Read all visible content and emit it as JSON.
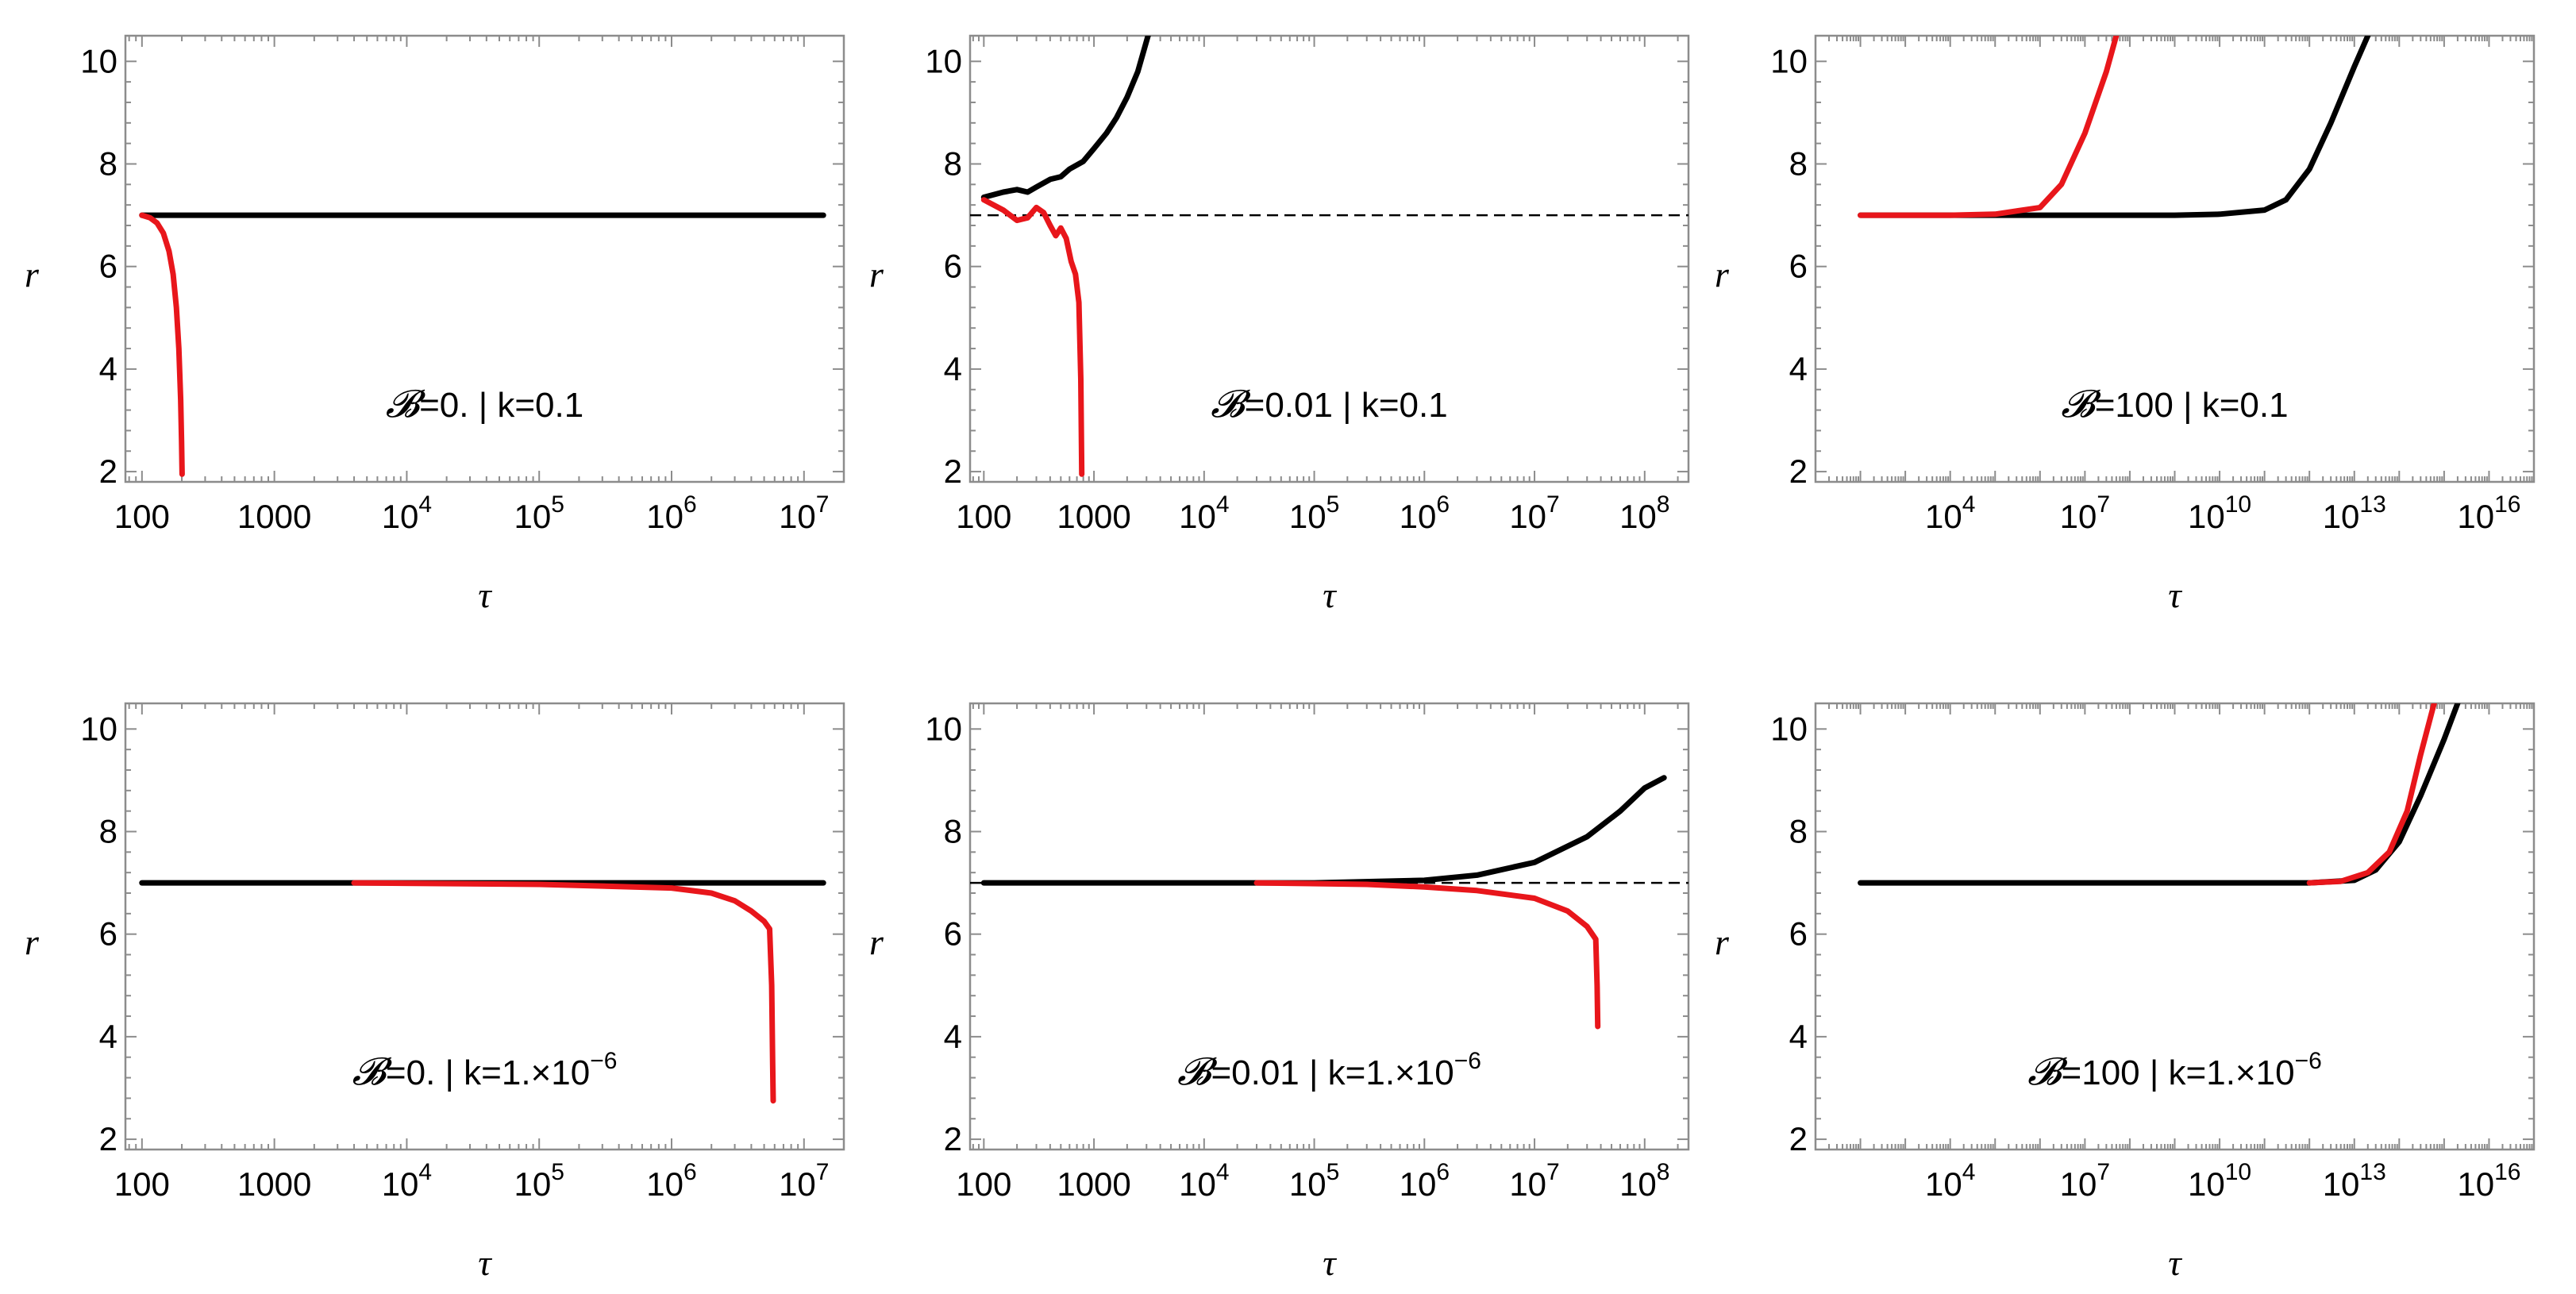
{
  "chart_data": [
    {
      "type": "line",
      "label": "𝓑=0. | k=0.1",
      "label_b": "𝓑",
      "label_b_value": "=0. | k=0.1",
      "label_exp": "",
      "xlabel": "τ",
      "ylabel": "r",
      "xscale": "log",
      "xlim": [
        75,
        20000000
      ],
      "ylim": [
        1.8,
        10.5
      ],
      "xticks": [
        {
          "v": 100,
          "m": "100",
          "e": ""
        },
        {
          "v": 1000,
          "m": "1000",
          "e": ""
        },
        {
          "v": 10000,
          "m": "10",
          "e": "4"
        },
        {
          "v": 100000,
          "m": "10",
          "e": "5"
        },
        {
          "v": 1000000,
          "m": "10",
          "e": "6"
        },
        {
          "v": 10000000,
          "m": "10",
          "e": "7"
        }
      ],
      "yticks": [
        "2",
        "4",
        "6",
        "8",
        "10"
      ],
      "dashed_reference": false,
      "series": [
        {
          "name": "black",
          "color": "#000000",
          "points": [
            [
              100,
              7.0
            ],
            [
              1000,
              7.0
            ],
            [
              10000,
              7.0
            ],
            [
              100000,
              7.0
            ],
            [
              1000000,
              7.0
            ],
            [
              10000000,
              7.0
            ],
            [
              14000000,
              7.0
            ]
          ]
        },
        {
          "name": "red",
          "color": "#e8161b",
          "points": [
            [
              100,
              7.0
            ],
            [
              115,
              6.95
            ],
            [
              130,
              6.85
            ],
            [
              145,
              6.65
            ],
            [
              160,
              6.3
            ],
            [
              172,
              5.85
            ],
            [
              182,
              5.2
            ],
            [
              190,
              4.4
            ],
            [
              196,
              3.4
            ],
            [
              199,
              2.6
            ],
            [
              201,
              1.95
            ]
          ]
        }
      ]
    },
    {
      "type": "line",
      "label": "𝓑=0.01 | k=0.1",
      "label_b": "𝓑",
      "label_b_value": "=0.01 | k=0.1",
      "label_exp": "",
      "xlabel": "τ",
      "ylabel": "r",
      "xscale": "log",
      "xlim": [
        75,
        250000000
      ],
      "ylim": [
        1.8,
        10.5
      ],
      "xticks": [
        {
          "v": 100,
          "m": "100",
          "e": ""
        },
        {
          "v": 1000,
          "m": "1000",
          "e": ""
        },
        {
          "v": 10000,
          "m": "10",
          "e": "4"
        },
        {
          "v": 100000,
          "m": "10",
          "e": "5"
        },
        {
          "v": 1000000,
          "m": "10",
          "e": "6"
        },
        {
          "v": 10000000,
          "m": "10",
          "e": "7"
        },
        {
          "v": 100000000,
          "m": "10",
          "e": "8"
        }
      ],
      "yticks": [
        "2",
        "4",
        "6",
        "8",
        "10"
      ],
      "dashed_reference": true,
      "reference_y": 7,
      "series": [
        {
          "name": "black",
          "color": "#000000",
          "points": [
            [
              100,
              7.35
            ],
            [
              150,
              7.45
            ],
            [
              200,
              7.5
            ],
            [
              250,
              7.45
            ],
            [
              300,
              7.55
            ],
            [
              400,
              7.7
            ],
            [
              500,
              7.75
            ],
            [
              600,
              7.9
            ],
            [
              800,
              8.05
            ],
            [
              1000,
              8.3
            ],
            [
              1300,
              8.6
            ],
            [
              1600,
              8.9
            ],
            [
              2000,
              9.3
            ],
            [
              2500,
              9.8
            ],
            [
              3100,
              10.5
            ]
          ]
        },
        {
          "name": "red",
          "color": "#e8161b",
          "points": [
            [
              100,
              7.3
            ],
            [
              150,
              7.1
            ],
            [
              200,
              6.9
            ],
            [
              250,
              6.95
            ],
            [
              300,
              7.15
            ],
            [
              350,
              7.05
            ],
            [
              400,
              6.8
            ],
            [
              450,
              6.6
            ],
            [
              500,
              6.75
            ],
            [
              560,
              6.55
            ],
            [
              620,
              6.1
            ],
            [
              680,
              5.85
            ],
            [
              730,
              5.3
            ],
            [
              760,
              3.8
            ],
            [
              775,
              1.95
            ]
          ]
        }
      ]
    },
    {
      "type": "line",
      "label": "𝓑=100 | k=0.1",
      "label_b": "𝓑",
      "label_b_value": "=100 | k=0.1",
      "label_exp": "",
      "xlabel": "τ",
      "ylabel": "r",
      "xscale": "log",
      "xlim": [
        10,
        1e+17
      ],
      "ylim": [
        1.8,
        10.5
      ],
      "xticks": [
        {
          "v": 10000,
          "m": "10",
          "e": "4"
        },
        {
          "v": 10000000,
          "m": "10",
          "e": "7"
        },
        {
          "v": 10000000000,
          "m": "10",
          "e": "10"
        },
        {
          "v": 10000000000000,
          "m": "10",
          "e": "13"
        },
        {
          "v": 10000000000000000,
          "m": "10",
          "e": "16"
        }
      ],
      "yticks": [
        "2",
        "4",
        "6",
        "8",
        "10"
      ],
      "dashed_reference": false,
      "series": [
        {
          "name": "black",
          "color": "#000000",
          "points": [
            [
              100,
              7.0
            ],
            [
              1000000.0,
              7.0
            ],
            [
              1000000000.0,
              7.0
            ],
            [
              10000000000.0,
              7.02
            ],
            [
              100000000000.0,
              7.1
            ],
            [
              100000000000.0,
              7.1
            ],
            [
              300000000000.0,
              7.3
            ],
            [
              1000000000000.0,
              7.9
            ],
            [
              3000000000000.0,
              8.8
            ],
            [
              10000000000000.0,
              9.9
            ],
            [
              20000000000000.0,
              10.5
            ]
          ]
        },
        {
          "name": "red",
          "color": "#e8161b",
          "points": [
            [
              100,
              7.0
            ],
            [
              10000.0,
              7.0
            ],
            [
              100000.0,
              7.02
            ],
            [
              1000000.0,
              7.15
            ],
            [
              3000000.0,
              7.6
            ],
            [
              10000000.0,
              8.6
            ],
            [
              30000000.0,
              9.8
            ],
            [
              50000000.0,
              10.5
            ]
          ]
        }
      ]
    },
    {
      "type": "line",
      "label": "𝓑=0. | k=1.×10−6",
      "label_b": "𝓑",
      "label_b_value": "=0. | k=1.×10",
      "label_exp": "−6",
      "xlabel": "τ",
      "ylabel": "r",
      "xscale": "log",
      "xlim": [
        75,
        20000000
      ],
      "ylim": [
        1.8,
        10.5
      ],
      "xticks": [
        {
          "v": 100,
          "m": "100",
          "e": ""
        },
        {
          "v": 1000,
          "m": "1000",
          "e": ""
        },
        {
          "v": 10000,
          "m": "10",
          "e": "4"
        },
        {
          "v": 100000,
          "m": "10",
          "e": "5"
        },
        {
          "v": 1000000,
          "m": "10",
          "e": "6"
        },
        {
          "v": 10000000,
          "m": "10",
          "e": "7"
        }
      ],
      "yticks": [
        "2",
        "4",
        "6",
        "8",
        "10"
      ],
      "dashed_reference": false,
      "series": [
        {
          "name": "black",
          "color": "#000000",
          "points": [
            [
              100,
              7.0
            ],
            [
              1000,
              7.0
            ],
            [
              100000,
              7.0
            ],
            [
              10000000,
              7.0
            ],
            [
              14000000,
              7.0
            ]
          ]
        },
        {
          "name": "red",
          "color": "#e8161b",
          "points": [
            [
              4000,
              7.0
            ],
            [
              100000,
              6.97
            ],
            [
              1000000,
              6.9
            ],
            [
              2000000,
              6.8
            ],
            [
              3000000,
              6.65
            ],
            [
              4000000,
              6.45
            ],
            [
              5000000,
              6.25
            ],
            [
              5500000,
              6.1
            ],
            [
              5700000,
              5.0
            ],
            [
              5800000,
              3.5
            ],
            [
              5850000,
              2.75
            ]
          ]
        }
      ]
    },
    {
      "type": "line",
      "label": "𝓑=0.01 | k=1.×10−6",
      "label_b": "𝓑",
      "label_b_value": "=0.01 | k=1.×10",
      "label_exp": "−6",
      "xlabel": "τ",
      "ylabel": "r",
      "xscale": "log",
      "xlim": [
        75,
        250000000
      ],
      "ylim": [
        1.8,
        10.5
      ],
      "xticks": [
        {
          "v": 100,
          "m": "100",
          "e": ""
        },
        {
          "v": 1000,
          "m": "1000",
          "e": ""
        },
        {
          "v": 10000,
          "m": "10",
          "e": "4"
        },
        {
          "v": 100000,
          "m": "10",
          "e": "5"
        },
        {
          "v": 1000000,
          "m": "10",
          "e": "6"
        },
        {
          "v": 10000000,
          "m": "10",
          "e": "7"
        },
        {
          "v": 100000000,
          "m": "10",
          "e": "8"
        }
      ],
      "yticks": [
        "2",
        "4",
        "6",
        "8",
        "10"
      ],
      "dashed_reference": true,
      "reference_y": 7,
      "series": [
        {
          "name": "black",
          "color": "#000000",
          "points": [
            [
              100,
              7.0
            ],
            [
              100000,
              7.0
            ],
            [
              1000000,
              7.05
            ],
            [
              3000000,
              7.15
            ],
            [
              10000000,
              7.4
            ],
            [
              30000000,
              7.9
            ],
            [
              60000000,
              8.4
            ],
            [
              100000000,
              8.85
            ],
            [
              150000000,
              9.05
            ]
          ]
        },
        {
          "name": "red",
          "color": "#e8161b",
          "points": [
            [
              30000,
              7.0
            ],
            [
              300000,
              6.97
            ],
            [
              1000000,
              6.92
            ],
            [
              3000000,
              6.85
            ],
            [
              10000000,
              6.7
            ],
            [
              20000000,
              6.45
            ],
            [
              30000000,
              6.15
            ],
            [
              36000000,
              5.9
            ],
            [
              37000000,
              5.0
            ],
            [
              37500000,
              4.2
            ]
          ]
        }
      ]
    },
    {
      "type": "line",
      "label": "𝓑=100 | k=1.×10−6",
      "label_b": "𝓑",
      "label_b_value": "=100 | k=1.×10",
      "label_exp": "−6",
      "xlabel": "τ",
      "ylabel": "r",
      "xscale": "log",
      "xlim": [
        10,
        1e+17
      ],
      "ylim": [
        1.8,
        10.5
      ],
      "xticks": [
        {
          "v": 10000,
          "m": "10",
          "e": "4"
        },
        {
          "v": 10000000,
          "m": "10",
          "e": "7"
        },
        {
          "v": 10000000000,
          "m": "10",
          "e": "10"
        },
        {
          "v": 10000000000000,
          "m": "10",
          "e": "13"
        },
        {
          "v": 10000000000000000,
          "m": "10",
          "e": "16"
        }
      ],
      "yticks": [
        "2",
        "4",
        "6",
        "8",
        "10"
      ],
      "dashed_reference": false,
      "series": [
        {
          "name": "black",
          "color": "#000000",
          "points": [
            [
              100,
              7.0
            ],
            [
              10000000000.0,
              7.0
            ],
            [
              1000000000000.0,
              7.0
            ],
            [
              10000000000000.0,
              7.05
            ],
            [
              30000000000000.0,
              7.25
            ],
            [
              100000000000000.0,
              7.8
            ],
            [
              300000000000000.0,
              8.7
            ],
            [
              1000000000000000.0,
              9.8
            ],
            [
              2000000000000000.0,
              10.5
            ]
          ]
        },
        {
          "name": "red",
          "color": "#e8161b",
          "points": [
            [
              1000000000000.0,
              7.0
            ],
            [
              5000000000000.0,
              7.03
            ],
            [
              20000000000000.0,
              7.2
            ],
            [
              60000000000000.0,
              7.6
            ],
            [
              150000000000000.0,
              8.4
            ],
            [
              300000000000000.0,
              9.5
            ],
            [
              600000000000000.0,
              10.5
            ]
          ]
        }
      ]
    }
  ]
}
